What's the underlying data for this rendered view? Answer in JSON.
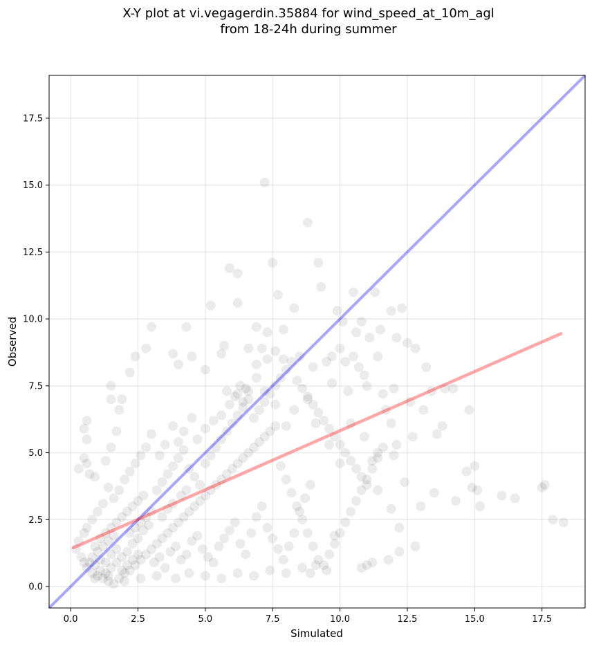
{
  "chart_data": {
    "type": "scatter",
    "title": "X-Y plot at vi.vegagerdin.35884 for wind_speed_at_10m_agl",
    "subtitle": "from 18-24h during summer",
    "xlabel": "Simulated",
    "ylabel": "Observed",
    "xlim": [
      -0.8,
      19.1
    ],
    "ylim": [
      -0.8,
      19.1
    ],
    "x_ticks": [
      "0.0",
      "2.5",
      "5.0",
      "7.5",
      "10.0",
      "12.5",
      "15.0",
      "17.5"
    ],
    "y_ticks": [
      "0.0",
      "2.5",
      "5.0",
      "7.5",
      "10.0",
      "12.5",
      "15.0",
      "17.5"
    ],
    "grid": true,
    "legend": "none",
    "point_color": "#000000",
    "point_alpha": 0.08,
    "identity_line": {
      "color": "#0000ff",
      "alpha": 0.35,
      "from": [
        -0.8,
        -0.8
      ],
      "to": [
        19.1,
        19.1
      ]
    },
    "regression_line": {
      "color": "#ff0000",
      "alpha": 0.35,
      "from": [
        0.1,
        1.45
      ],
      "to": [
        18.2,
        9.45
      ]
    },
    "points": [
      [
        7.2,
        15.1
      ],
      [
        8.8,
        13.6
      ],
      [
        7.5,
        12.1
      ],
      [
        9.2,
        12.1
      ],
      [
        5.9,
        11.9
      ],
      [
        6.2,
        11.7
      ],
      [
        9.3,
        11.2
      ],
      [
        11.9,
        10.3
      ],
      [
        12.3,
        10.4
      ],
      [
        11.3,
        11.0
      ],
      [
        10.5,
        11.0
      ],
      [
        8.3,
        10.4
      ],
      [
        6.2,
        10.6
      ],
      [
        5.2,
        10.5
      ],
      [
        7.7,
        10.9
      ],
      [
        9.9,
        10.3
      ],
      [
        10.1,
        9.9
      ],
      [
        10.8,
        9.9
      ],
      [
        11.5,
        9.6
      ],
      [
        12.1,
        9.3
      ],
      [
        12.5,
        9.1
      ],
      [
        12.8,
        8.9
      ],
      [
        13.2,
        8.2
      ],
      [
        13.9,
        7.4
      ],
      [
        14.2,
        7.4
      ],
      [
        14.8,
        6.6
      ],
      [
        15.0,
        4.5
      ],
      [
        15.2,
        3.0
      ],
      [
        14.3,
        3.2
      ],
      [
        14.7,
        4.3
      ],
      [
        14.9,
        3.7
      ],
      [
        15.1,
        3.6
      ],
      [
        16.0,
        3.4
      ],
      [
        16.5,
        3.3
      ],
      [
        17.6,
        3.8
      ],
      [
        17.5,
        3.7
      ],
      [
        17.9,
        2.5
      ],
      [
        18.3,
        2.4
      ],
      [
        13.0,
        3.0
      ],
      [
        13.5,
        3.5
      ],
      [
        12.8,
        1.5
      ],
      [
        12.2,
        1.3
      ],
      [
        12.2,
        2.2
      ],
      [
        11.8,
        1.0
      ],
      [
        11.0,
        0.8
      ],
      [
        11.2,
        0.9
      ],
      [
        10.8,
        0.7
      ],
      [
        9.5,
        0.6
      ],
      [
        8.9,
        0.5
      ],
      [
        9.8,
        1.9
      ],
      [
        0.6,
        6.2
      ],
      [
        0.5,
        5.9
      ],
      [
        0.6,
        5.5
      ],
      [
        0.5,
        4.8
      ],
      [
        0.6,
        4.6
      ],
      [
        0.7,
        4.2
      ],
      [
        0.3,
        4.4
      ],
      [
        0.9,
        4.1
      ],
      [
        1.3,
        4.7
      ],
      [
        1.5,
        5.2
      ],
      [
        1.7,
        5.8
      ],
      [
        1.8,
        6.6
      ],
      [
        1.5,
        7.0
      ],
      [
        1.5,
        7.5
      ],
      [
        1.9,
        7.0
      ],
      [
        2.2,
        8.0
      ],
      [
        2.4,
        8.6
      ],
      [
        2.8,
        8.9
      ],
      [
        3.0,
        9.7
      ],
      [
        4.3,
        9.7
      ],
      [
        3.8,
        8.7
      ],
      [
        4.0,
        8.3
      ],
      [
        4.5,
        8.6
      ],
      [
        5.0,
        8.1
      ],
      [
        5.6,
        8.7
      ],
      [
        5.7,
        9.0
      ],
      [
        6.6,
        8.9
      ],
      [
        6.9,
        9.7
      ],
      [
        7.3,
        9.5
      ],
      [
        7.9,
        9.6
      ],
      [
        8.5,
        8.6
      ],
      [
        9.0,
        8.2
      ],
      [
        9.7,
        8.6
      ],
      [
        10.2,
        8.4
      ],
      [
        10.7,
        8.2
      ],
      [
        10.9,
        7.9
      ],
      [
        11.6,
        7.2
      ],
      [
        12.0,
        7.4
      ],
      [
        12.6,
        6.9
      ],
      [
        13.1,
        6.6
      ],
      [
        13.4,
        7.3
      ],
      [
        13.8,
        6.0
      ],
      [
        13.6,
        5.7
      ],
      [
        12.7,
        5.6
      ],
      [
        12.1,
        5.3
      ],
      [
        11.4,
        5.0
      ],
      [
        11.9,
        6.1
      ],
      [
        12.0,
        4.9
      ],
      [
        12.4,
        3.9
      ],
      [
        11.9,
        2.9
      ],
      [
        11.4,
        3.6
      ],
      [
        11.2,
        4.7
      ],
      [
        10.9,
        5.6
      ],
      [
        10.4,
        6.1
      ],
      [
        10.0,
        4.6
      ],
      [
        9.6,
        5.3
      ],
      [
        9.1,
        6.1
      ],
      [
        8.8,
        7.0
      ],
      [
        8.3,
        6.6
      ],
      [
        8.0,
        6.0
      ],
      [
        7.6,
        6.8
      ],
      [
        7.2,
        7.3
      ],
      [
        6.9,
        7.8
      ],
      [
        6.5,
        7.4
      ],
      [
        6.2,
        7.2
      ],
      [
        5.9,
        6.8
      ],
      [
        5.6,
        6.4
      ],
      [
        5.3,
        6.2
      ],
      [
        5.0,
        5.9
      ],
      [
        4.7,
        5.5
      ],
      [
        4.5,
        6.3
      ],
      [
        4.2,
        5.8
      ],
      [
        4.0,
        5.4
      ],
      [
        3.8,
        6.0
      ],
      [
        3.5,
        5.3
      ],
      [
        3.3,
        4.9
      ],
      [
        3.0,
        5.7
      ],
      [
        2.8,
        5.2
      ],
      [
        2.6,
        4.9
      ],
      [
        2.4,
        4.6
      ],
      [
        2.2,
        4.3
      ],
      [
        2.0,
        4.0
      ],
      [
        1.8,
        3.6
      ],
      [
        1.6,
        3.3
      ],
      [
        1.4,
        3.7
      ],
      [
        1.2,
        3.1
      ],
      [
        1.0,
        2.8
      ],
      [
        0.8,
        2.5
      ],
      [
        0.6,
        2.2
      ],
      [
        0.5,
        2.0
      ],
      [
        0.3,
        1.7
      ],
      [
        0.2,
        1.4
      ],
      [
        0.4,
        1.1
      ],
      [
        0.5,
        0.9
      ],
      [
        0.6,
        0.7
      ],
      [
        0.8,
        0.5
      ],
      [
        1.0,
        0.4
      ],
      [
        1.2,
        0.3
      ],
      [
        1.4,
        0.2
      ],
      [
        1.6,
        0.1
      ],
      [
        1.8,
        0.3
      ],
      [
        2.0,
        0.5
      ],
      [
        2.2,
        0.6
      ],
      [
        2.4,
        0.8
      ],
      [
        2.6,
        1.0
      ],
      [
        2.8,
        1.2
      ],
      [
        3.0,
        1.4
      ],
      [
        3.2,
        1.6
      ],
      [
        3.4,
        1.8
      ],
      [
        3.6,
        2.0
      ],
      [
        3.8,
        2.2
      ],
      [
        4.0,
        2.4
      ],
      [
        4.2,
        2.6
      ],
      [
        4.4,
        2.8
      ],
      [
        4.6,
        3.0
      ],
      [
        4.8,
        3.2
      ],
      [
        5.0,
        3.4
      ],
      [
        5.2,
        3.6
      ],
      [
        5.4,
        3.8
      ],
      [
        5.6,
        4.0
      ],
      [
        5.8,
        4.2
      ],
      [
        6.0,
        4.4
      ],
      [
        6.2,
        4.6
      ],
      [
        6.4,
        4.8
      ],
      [
        6.6,
        5.0
      ],
      [
        6.8,
        5.2
      ],
      [
        7.0,
        5.4
      ],
      [
        7.2,
        5.6
      ],
      [
        7.4,
        5.8
      ],
      [
        7.6,
        6.0
      ],
      [
        7.8,
        4.5
      ],
      [
        8.0,
        4.0
      ],
      [
        8.2,
        3.5
      ],
      [
        8.4,
        3.0
      ],
      [
        8.6,
        2.5
      ],
      [
        8.8,
        2.0
      ],
      [
        9.0,
        1.5
      ],
      [
        9.2,
        1.0
      ],
      [
        9.4,
        0.8
      ],
      [
        9.6,
        1.2
      ],
      [
        9.8,
        1.6
      ],
      [
        10.0,
        2.0
      ],
      [
        10.2,
        2.4
      ],
      [
        10.4,
        2.8
      ],
      [
        10.6,
        3.2
      ],
      [
        10.8,
        3.6
      ],
      [
        11.0,
        4.0
      ],
      [
        11.2,
        4.4
      ],
      [
        11.4,
        4.8
      ],
      [
        11.6,
        5.2
      ],
      [
        1.1,
        1.0
      ],
      [
        1.3,
        0.9
      ],
      [
        1.5,
        1.2
      ],
      [
        1.7,
        1.4
      ],
      [
        1.9,
        1.1
      ],
      [
        2.1,
        1.3
      ],
      [
        2.3,
        1.6
      ],
      [
        2.5,
        1.8
      ],
      [
        2.7,
        2.1
      ],
      [
        2.9,
        2.3
      ],
      [
        0.9,
        1.5
      ],
      [
        1.1,
        1.8
      ],
      [
        1.3,
        2.0
      ],
      [
        1.5,
        2.2
      ],
      [
        1.7,
        2.4
      ],
      [
        1.9,
        2.6
      ],
      [
        2.1,
        2.8
      ],
      [
        2.3,
        3.0
      ],
      [
        2.5,
        3.2
      ],
      [
        2.7,
        3.4
      ],
      [
        0.7,
        0.9
      ],
      [
        0.9,
        0.8
      ],
      [
        1.1,
        0.6
      ],
      [
        1.3,
        0.5
      ],
      [
        1.5,
        0.7
      ],
      [
        1.7,
        0.9
      ],
      [
        1.9,
        0.6
      ],
      [
        2.1,
        0.8
      ],
      [
        2.3,
        1.0
      ],
      [
        2.5,
        1.2
      ],
      [
        3.1,
        0.9
      ],
      [
        3.3,
        1.1
      ],
      [
        3.5,
        0.7
      ],
      [
        3.7,
        1.3
      ],
      [
        3.9,
        1.5
      ],
      [
        4.1,
        1.0
      ],
      [
        4.3,
        1.2
      ],
      [
        4.5,
        1.7
      ],
      [
        4.7,
        1.9
      ],
      [
        4.9,
        1.4
      ],
      [
        5.1,
        1.1
      ],
      [
        5.3,
        0.9
      ],
      [
        5.5,
        1.5
      ],
      [
        5.7,
        1.8
      ],
      [
        5.9,
        2.1
      ],
      [
        6.1,
        2.4
      ],
      [
        6.3,
        1.6
      ],
      [
        6.5,
        1.2
      ],
      [
        6.7,
        2.0
      ],
      [
        6.9,
        2.6
      ],
      [
        7.1,
        3.0
      ],
      [
        7.3,
        2.2
      ],
      [
        7.5,
        1.8
      ],
      [
        7.7,
        1.4
      ],
      [
        7.9,
        1.0
      ],
      [
        8.1,
        1.5
      ],
      [
        8.3,
        2.0
      ],
      [
        8.5,
        2.8
      ],
      [
        8.7,
        3.3
      ],
      [
        8.9,
        3.8
      ],
      [
        3.2,
        3.6
      ],
      [
        3.4,
        3.9
      ],
      [
        3.6,
        4.2
      ],
      [
        3.8,
        4.5
      ],
      [
        4.0,
        4.8
      ],
      [
        4.2,
        5.1
      ],
      [
        4.4,
        4.4
      ],
      [
        4.6,
        4.1
      ],
      [
        4.8,
        3.8
      ],
      [
        5.0,
        4.6
      ],
      [
        5.2,
        4.9
      ],
      [
        5.4,
        5.2
      ],
      [
        5.6,
        5.5
      ],
      [
        5.8,
        5.8
      ],
      [
        6.0,
        6.1
      ],
      [
        6.2,
        6.4
      ],
      [
        6.4,
        6.7
      ],
      [
        6.6,
        7.0
      ],
      [
        6.8,
        6.3
      ],
      [
        7.0,
        6.6
      ],
      [
        7.2,
        6.9
      ],
      [
        7.4,
        7.2
      ],
      [
        7.6,
        7.5
      ],
      [
        7.8,
        7.8
      ],
      [
        8.0,
        8.1
      ],
      [
        8.2,
        8.4
      ],
      [
        8.4,
        7.7
      ],
      [
        8.6,
        7.4
      ],
      [
        8.8,
        7.1
      ],
      [
        9.0,
        6.8
      ],
      [
        9.2,
        6.5
      ],
      [
        9.4,
        6.2
      ],
      [
        9.6,
        5.9
      ],
      [
        9.8,
        5.6
      ],
      [
        10.0,
        5.3
      ],
      [
        10.2,
        5.0
      ],
      [
        10.4,
        4.7
      ],
      [
        10.6,
        4.4
      ],
      [
        10.8,
        4.1
      ],
      [
        11.0,
        3.8
      ],
      [
        6.3,
        7.5
      ],
      [
        6.6,
        7.3
      ],
      [
        6.1,
        7.1
      ],
      [
        6.4,
        6.9
      ],
      [
        5.8,
        7.3
      ],
      [
        7.3,
        8.5
      ],
      [
        7.6,
        8.8
      ],
      [
        7.9,
        8.5
      ],
      [
        6.9,
        8.3
      ],
      [
        7.1,
        8.9
      ],
      [
        3.4,
        2.6
      ],
      [
        3.6,
        2.9
      ],
      [
        3.8,
        3.1
      ],
      [
        4.1,
        3.4
      ],
      [
        4.3,
        3.6
      ],
      [
        2.6,
        2.4
      ],
      [
        2.8,
        2.6
      ],
      [
        3.0,
        2.8
      ],
      [
        2.4,
        2.2
      ],
      [
        2.2,
        2.0
      ],
      [
        1.0,
        1.3
      ],
      [
        1.2,
        1.5
      ],
      [
        1.4,
        1.7
      ],
      [
        1.6,
        1.9
      ],
      [
        0.8,
        1.1
      ],
      [
        0.9,
        0.3
      ],
      [
        1.4,
        0.4
      ],
      [
        2.0,
        0.2
      ],
      [
        2.6,
        0.3
      ],
      [
        3.2,
        0.4
      ],
      [
        3.9,
        0.3
      ],
      [
        4.4,
        0.5
      ],
      [
        5.0,
        0.4
      ],
      [
        5.6,
        0.3
      ],
      [
        6.2,
        0.5
      ],
      [
        6.8,
        0.4
      ],
      [
        7.4,
        0.6
      ],
      [
        8.0,
        0.5
      ],
      [
        8.6,
        0.7
      ],
      [
        9.1,
        0.8
      ],
      [
        10.3,
        7.3
      ],
      [
        10.5,
        8.6
      ],
      [
        10.0,
        8.9
      ],
      [
        9.5,
        8.4
      ],
      [
        9.7,
        7.6
      ],
      [
        10.6,
        9.5
      ],
      [
        11.1,
        9.3
      ],
      [
        11.4,
        8.6
      ],
      [
        11.0,
        7.5
      ],
      [
        11.7,
        6.6
      ]
    ]
  }
}
